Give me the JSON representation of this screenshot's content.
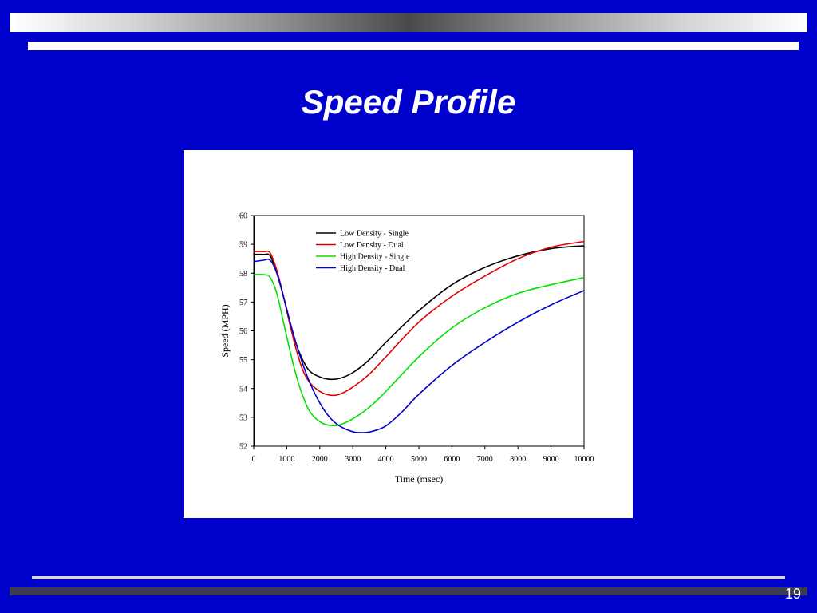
{
  "slide": {
    "title": "Speed Profile",
    "page_number": "19"
  },
  "chart_data": {
    "type": "line",
    "xlabel": "Time (msec)",
    "ylabel": "Speed (MPH)",
    "xlim": [
      0,
      10000
    ],
    "ylim": [
      52,
      60
    ],
    "xticks": [
      0,
      1000,
      2000,
      3000,
      4000,
      5000,
      6000,
      7000,
      8000,
      9000,
      10000
    ],
    "yticks": [
      52,
      53,
      54,
      55,
      56,
      57,
      58,
      59,
      60
    ],
    "grid": false,
    "legend_position": "top-center",
    "series": [
      {
        "name": "Low Density - Single",
        "color": "#000000",
        "x": [
          0,
          300,
          500,
          700,
          900,
          1100,
          1300,
          1500,
          1700,
          2000,
          2300,
          2600,
          3000,
          3500,
          4000,
          5000,
          6000,
          7000,
          8000,
          9000,
          10000
        ],
        "y": [
          58.65,
          58.65,
          58.6,
          58.0,
          57.2,
          56.3,
          55.5,
          54.95,
          54.6,
          54.4,
          54.32,
          54.35,
          54.55,
          55.0,
          55.6,
          56.7,
          57.6,
          58.2,
          58.6,
          58.85,
          58.95
        ]
      },
      {
        "name": "Low Density - Dual",
        "color": "#e00000",
        "x": [
          0,
          300,
          500,
          700,
          900,
          1100,
          1300,
          1500,
          1700,
          2000,
          2300,
          2600,
          3000,
          3500,
          4000,
          5000,
          6000,
          7000,
          8000,
          9000,
          10000
        ],
        "y": [
          58.75,
          58.75,
          58.7,
          58.1,
          57.2,
          56.2,
          55.3,
          54.6,
          54.2,
          53.9,
          53.77,
          53.8,
          54.05,
          54.5,
          55.1,
          56.3,
          57.2,
          57.9,
          58.5,
          58.9,
          59.1
        ]
      },
      {
        "name": "High Density - Single",
        "color": "#00e000",
        "x": [
          0,
          300,
          500,
          700,
          900,
          1100,
          1300,
          1500,
          1700,
          2000,
          2300,
          2600,
          3000,
          3500,
          4000,
          5000,
          6000,
          7000,
          8000,
          9000,
          10000
        ],
        "y": [
          57.95,
          57.95,
          57.85,
          57.3,
          56.3,
          55.3,
          54.4,
          53.7,
          53.2,
          52.85,
          52.72,
          52.74,
          52.95,
          53.35,
          53.9,
          55.1,
          56.1,
          56.8,
          57.3,
          57.6,
          57.85
        ]
      },
      {
        "name": "High Density - Dual",
        "color": "#0000cc",
        "x": [
          0,
          300,
          500,
          700,
          900,
          1100,
          1300,
          1500,
          1700,
          2000,
          2300,
          2600,
          3000,
          3300,
          3600,
          4000,
          4500,
          5000,
          6000,
          7000,
          8000,
          9000,
          10000
        ],
        "y": [
          58.4,
          58.45,
          58.45,
          58.0,
          57.2,
          56.3,
          55.5,
          54.8,
          54.2,
          53.5,
          53.0,
          52.7,
          52.5,
          52.47,
          52.52,
          52.7,
          53.2,
          53.8,
          54.8,
          55.6,
          56.3,
          56.9,
          57.4
        ]
      }
    ]
  }
}
